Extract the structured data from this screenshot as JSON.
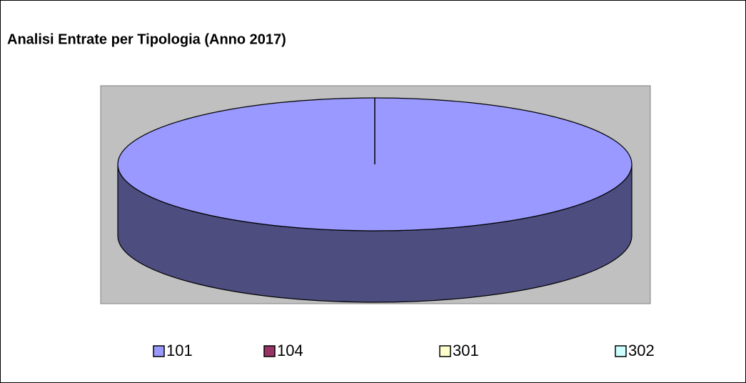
{
  "chart_data": {
    "type": "pie3d",
    "title": "Analisi Entrate per Tipologia (Anno 2017)",
    "categories": [
      "101",
      "104",
      "301",
      "302"
    ],
    "values": [
      100,
      0,
      0,
      0
    ],
    "colors": [
      "#9999ff",
      "#993366",
      "#ffffcc",
      "#ccffff"
    ],
    "legend": "bottom"
  }
}
